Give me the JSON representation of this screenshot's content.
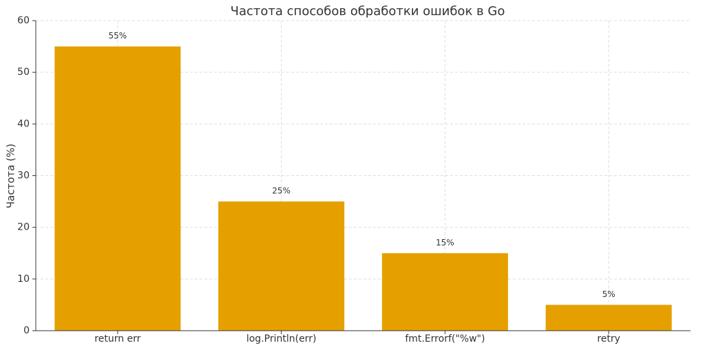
{
  "chart_data": {
    "type": "bar",
    "title": "Частота способов обработки ошибок в Go",
    "y_label": "Частота (%)",
    "categories": [
      "return err",
      "log.Println(err)",
      "fmt.Errorf(\"%w\")",
      "retry"
    ],
    "values": [
      55,
      25,
      15,
      5
    ],
    "value_labels": [
      "55%",
      "25%",
      "15%",
      "5%"
    ],
    "color": "#e5a000",
    "ylim": [
      0,
      60
    ],
    "yticks": [
      0,
      10,
      20,
      30,
      40,
      50,
      60
    ],
    "grid": true
  }
}
